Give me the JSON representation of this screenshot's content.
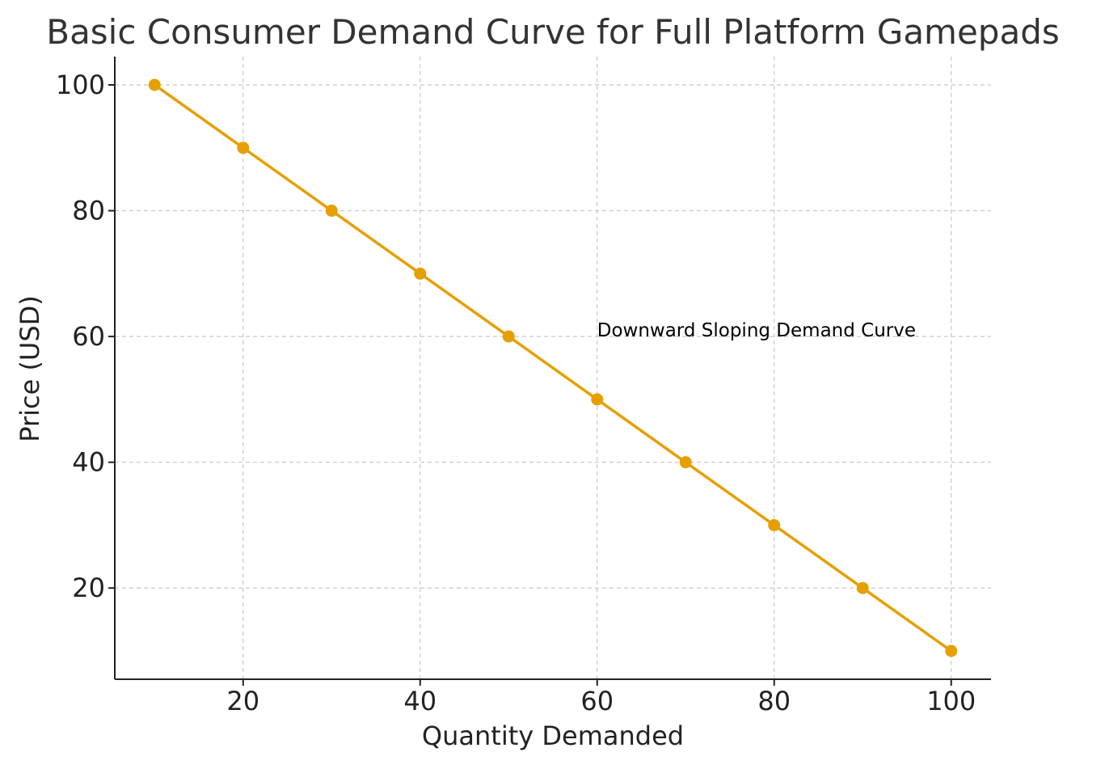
{
  "chart_data": {
    "type": "line",
    "title": "Basic Consumer Demand Curve for Full Platform Gamepads",
    "xlabel": "Quantity Demanded",
    "ylabel": "Price (USD)",
    "x": [
      10,
      20,
      30,
      40,
      50,
      60,
      70,
      80,
      90,
      100
    ],
    "series": [
      {
        "values": [
          100,
          90,
          80,
          70,
          60,
          50,
          40,
          30,
          20,
          10
        ],
        "color": "#E69F00",
        "marker": "circle"
      }
    ],
    "xlim": [
      5.5,
      104.5
    ],
    "ylim": [
      5.5,
      104.5
    ],
    "xticks": [
      20,
      40,
      60,
      80,
      100
    ],
    "yticks": [
      20,
      40,
      60,
      80,
      100
    ],
    "grid": true,
    "grid_style": "dashed",
    "annotations": [
      {
        "text": "Downward Sloping Demand Curve",
        "x": 60,
        "y": 60
      }
    ]
  }
}
